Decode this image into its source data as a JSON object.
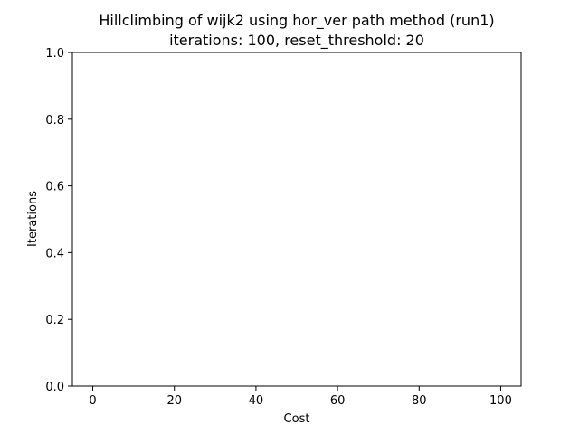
{
  "chart_data": {
    "type": "line",
    "title": "Hillclimbing of wijk2 using hor_ver path method (run1)",
    "subtitle": "iterations: 100, reset_threshold: 20",
    "xlabel": "Cost",
    "ylabel": "Iterations",
    "xlim": [
      -5,
      105
    ],
    "ylim": [
      0,
      1
    ],
    "xticks": [
      0,
      20,
      40,
      60,
      80,
      100
    ],
    "yticks": [
      0.0,
      0.2,
      0.4,
      0.6,
      0.8,
      1.0
    ],
    "ytick_labels": [
      "0.0",
      "0.2",
      "0.4",
      "0.6",
      "0.8",
      "1.0"
    ],
    "grid": false,
    "series": [
      {
        "x": [],
        "y": []
      }
    ]
  }
}
